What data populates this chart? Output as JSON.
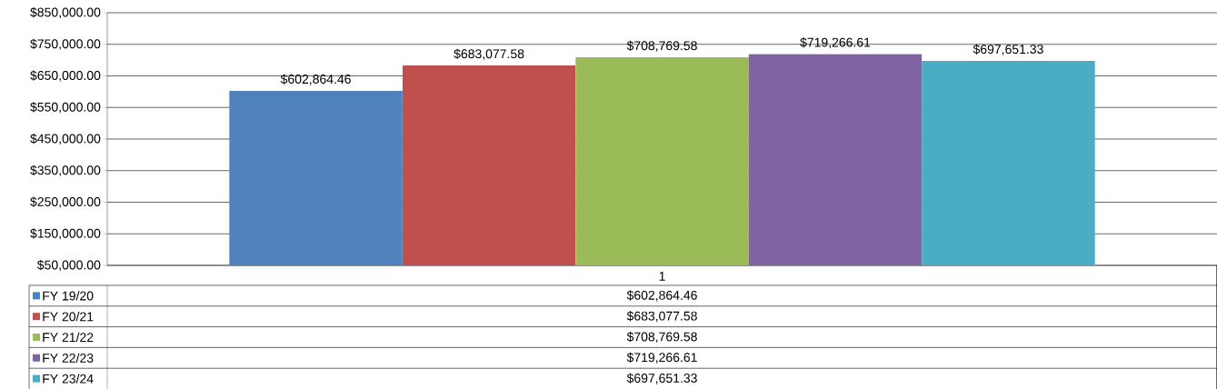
{
  "chart_data": {
    "type": "bar",
    "categories": [
      "1"
    ],
    "series": [
      {
        "name": "FY 19/20",
        "color": "#4f81bd",
        "values": [
          602864.46
        ],
        "value_labels": [
          "$602,864.46"
        ]
      },
      {
        "name": "FY 20/21",
        "color": "#c0504d",
        "values": [
          683077.58
        ],
        "value_labels": [
          "$683,077.58"
        ]
      },
      {
        "name": "FY 21/22",
        "color": "#9bbb59",
        "values": [
          708769.58
        ],
        "value_labels": [
          "$708,769.58"
        ]
      },
      {
        "name": "FY 22/23",
        "color": "#8064a2",
        "values": [
          719266.61
        ],
        "value_labels": [
          "$719,266.61"
        ]
      },
      {
        "name": "FY 23/24",
        "color": "#4bacc6",
        "values": [
          697651.33
        ],
        "value_labels": [
          "$697,651.33"
        ]
      }
    ],
    "ylim": [
      50000,
      850000
    ],
    "yticks": [
      {
        "value": 50000,
        "label": "$50,000.00"
      },
      {
        "value": 150000,
        "label": "$150,000.00"
      },
      {
        "value": 250000,
        "label": "$250,000.00"
      },
      {
        "value": 350000,
        "label": "$350,000.00"
      },
      {
        "value": 450000,
        "label": "$450,000.00"
      },
      {
        "value": 550000,
        "label": "$550,000.00"
      },
      {
        "value": 650000,
        "label": "$650,000.00"
      },
      {
        "value": 750000,
        "label": "$750,000.00"
      },
      {
        "value": 850000,
        "label": "$850,000.00"
      }
    ],
    "grid": "y",
    "legend": "bottom"
  }
}
